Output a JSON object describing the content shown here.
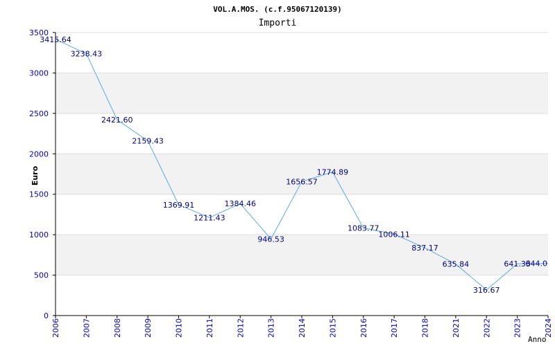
{
  "chart_data": {
    "type": "line",
    "title": "VOL.A.MOS. (c.f.95067120139)",
    "subtitle": "Importi",
    "xlabel": "Anno",
    "ylabel": "Euro",
    "ylim": [
      0,
      3500
    ],
    "yticks": [
      0,
      500,
      1000,
      1500,
      2000,
      2500,
      3000,
      3500
    ],
    "grid": true,
    "categories": [
      "2006",
      "2007",
      "2008",
      "2009",
      "2010",
      "2011",
      "2012",
      "2013",
      "2014",
      "2015",
      "2016",
      "2017",
      "2018",
      "2021",
      "2022",
      "2023",
      "2024"
    ],
    "values": [
      3415.64,
      3238.43,
      2421.6,
      2159.43,
      1369.91,
      1211.43,
      1384.46,
      946.53,
      1656.57,
      1774.89,
      1083.77,
      1006.11,
      837.17,
      635.84,
      316.67,
      641.33,
      644.0
    ],
    "labels": [
      "3415.64",
      "3238.43",
      "2421.60",
      "2159.43",
      "1369.91",
      "1211.43",
      "1384.46",
      "946.53",
      "1656.57",
      "1774.89",
      "1083.77",
      "1006.11",
      "837.17",
      "635.84",
      "316.67",
      "641.33",
      "644.0"
    ],
    "colors": {
      "line": "#5aa8e8",
      "band": "#f2f2f2",
      "grid": "#dddddd",
      "axis": "#000000",
      "tick_text": "#0000cc",
      "label_text": "#000080"
    }
  }
}
